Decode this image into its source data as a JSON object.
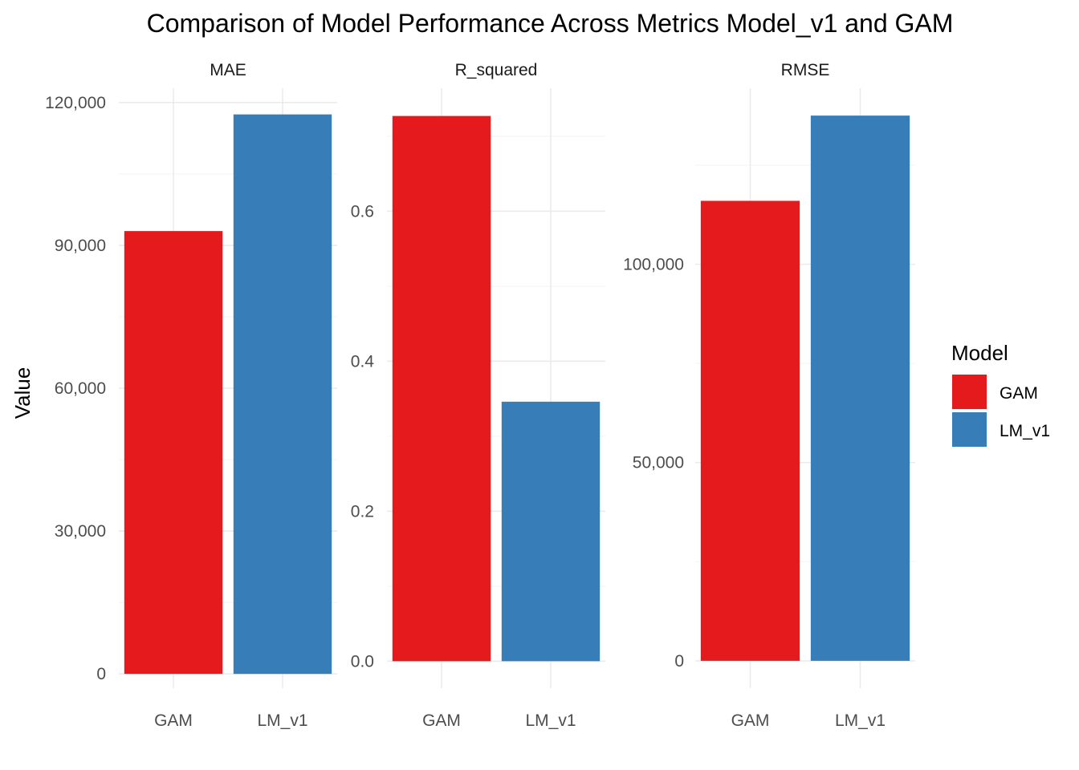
{
  "chart_data": {
    "type": "bar",
    "title": "Comparison of Model Performance Across Metrics Model_v1 and GAM",
    "ylabel": "Value",
    "xlabel": "",
    "grid": true,
    "legend": {
      "title": "Model",
      "placement": "right",
      "entries": [
        {
          "name": "GAM",
          "color": "#E41A1C"
        },
        {
          "name": "LM_v1",
          "color": "#377EB8"
        }
      ]
    },
    "facets": [
      {
        "name": "MAE",
        "categories": [
          "GAM",
          "LM_v1"
        ],
        "values": [
          93000,
          117500
        ],
        "ylim": [
          -3000,
          123000
        ],
        "ticks": [
          0,
          30000,
          60000,
          90000,
          120000
        ],
        "tick_labels": [
          "0",
          "30,000",
          "60,000",
          "90,000",
          "120,000"
        ],
        "minor": [
          15000,
          45000,
          75000,
          105000
        ]
      },
      {
        "name": "R_squared",
        "categories": [
          "GAM",
          "LM_v1"
        ],
        "values": [
          0.727,
          0.346
        ],
        "ylim": [
          -0.036,
          0.764
        ],
        "ticks": [
          0.0,
          0.2,
          0.4,
          0.6
        ],
        "tick_labels": [
          "0.0",
          "0.2",
          "0.4",
          "0.6"
        ],
        "minor": [
          0.1,
          0.3,
          0.5,
          0.7
        ]
      },
      {
        "name": "RMSE",
        "categories": [
          "GAM",
          "LM_v1"
        ],
        "values": [
          116000,
          137500
        ],
        "ylim": [
          -6900,
          144400
        ],
        "ticks": [
          0,
          50000,
          100000
        ],
        "tick_labels": [
          "0",
          "50,000",
          "100,000"
        ],
        "minor": [
          25000,
          75000,
          125000
        ]
      }
    ]
  }
}
